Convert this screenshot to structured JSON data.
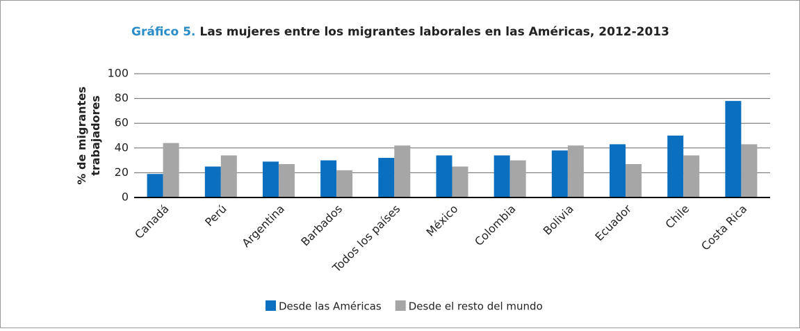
{
  "chart_data": {
    "type": "bar",
    "title_number": "Gráfico 5.",
    "title": "Las mujeres entre los migrantes laborales en las Américas, 2012-2013",
    "ylabel": [
      "% de migrantes",
      "trabajadores"
    ],
    "categories": [
      "Canadá",
      "Perú",
      "Argentina",
      "Barbados",
      "Todos los países",
      "México",
      "Colombia",
      "Bolivia",
      "Ecuador",
      "Chile",
      "Costa Rica"
    ],
    "series": [
      {
        "name": "Desde las Américas",
        "color": "#0b6fbf",
        "values": [
          19,
          25,
          29,
          30,
          32,
          34,
          34,
          38,
          43,
          50,
          78
        ]
      },
      {
        "name": "Desde el resto del mundo",
        "color": "#a6a6a6",
        "values": [
          44,
          34,
          27,
          22,
          42,
          25,
          30,
          42,
          27,
          34,
          43
        ]
      }
    ],
    "ylim": [
      0,
      100
    ],
    "yticks": [
      0,
      20,
      40,
      60,
      80,
      100
    ],
    "grid": true,
    "legend": "bottom"
  }
}
